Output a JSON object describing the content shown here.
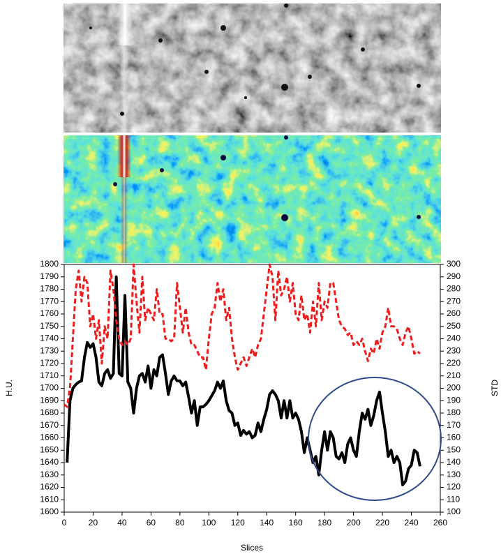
{
  "chart_data": {
    "type": "line",
    "x_label": "Slices",
    "y_label": "H.U.",
    "y2_label": "STD",
    "x": [
      0,
      2,
      4,
      6,
      8,
      10,
      12,
      14,
      16,
      18,
      20,
      22,
      24,
      26,
      28,
      30,
      32,
      34,
      36,
      38,
      40,
      42,
      44,
      46,
      48,
      50,
      52,
      54,
      56,
      58,
      60,
      62,
      64,
      66,
      68,
      70,
      72,
      74,
      76,
      78,
      80,
      82,
      84,
      86,
      88,
      90,
      92,
      94,
      96,
      98,
      100,
      102,
      104,
      106,
      108,
      110,
      112,
      114,
      116,
      118,
      120,
      122,
      124,
      126,
      128,
      130,
      132,
      134,
      136,
      138,
      140,
      142,
      144,
      146,
      148,
      150,
      152,
      154,
      156,
      158,
      160,
      162,
      164,
      166,
      168,
      170,
      172,
      174,
      176,
      178,
      180,
      182,
      184,
      186,
      188,
      190,
      192,
      194,
      196,
      198,
      200,
      202,
      204,
      206,
      208,
      210,
      212,
      214,
      216,
      218,
      220,
      222,
      224,
      226,
      228,
      230,
      232,
      234,
      236,
      238,
      240,
      242,
      244,
      246
    ],
    "series": [
      {
        "color": "#000000",
        "values": [
          null,
          1640,
          1690,
          1700,
          1703,
          1705,
          1706,
          1725,
          1737,
          1733,
          1736,
          1725,
          1705,
          1702,
          1712,
          1715,
          1708,
          1712,
          1790,
          1712,
          1710,
          1775,
          1705,
          1700,
          1680,
          1700,
          1710,
          1712,
          1705,
          1718,
          1700,
          1715,
          1710,
          1725,
          1727,
          1712,
          1695,
          1706,
          1710,
          1706,
          1706,
          1702,
          1705,
          1693,
          1680,
          1690,
          1670,
          1685,
          1685,
          1687,
          1690,
          1694,
          1698,
          1705,
          1700,
          1706,
          1690,
          1682,
          1680,
          1670,
          1672,
          1662,
          1666,
          1663,
          1665,
          1660,
          1662,
          1672,
          1665,
          1675,
          1683,
          1695,
          1698,
          1695,
          1690,
          1676,
          1690,
          1676,
          1690,
          1676,
          1680,
          1675,
          1665,
          1648,
          1660,
          1650,
          1640,
          1645,
          1630,
          1650,
          1665,
          1650,
          1665,
          1660,
          1645,
          1643,
          1648,
          1640,
          1655,
          1660,
          1650,
          1645,
          1665,
          1680,
          1675,
          1683,
          1670,
          1678,
          1690,
          1697,
          1680,
          1665,
          1645,
          1650,
          1640,
          1645,
          1640,
          1622,
          1625,
          1635,
          1638,
          1650,
          1648,
          1637
        ]
      },
      {
        "color": "#ee1c1c",
        "axis": "y2",
        "dashed": true,
        "values": [
          187,
          185,
          200,
          240,
          280,
          295,
          270,
          290,
          285,
          250,
          260,
          240,
          255,
          220,
          250,
          240,
          295,
          280,
          255,
          240,
          235,
          238,
          235,
          240,
          300,
          270,
          245,
          290,
          255,
          265,
          260,
          255,
          280,
          260,
          260,
          240,
          240,
          238,
          240,
          285,
          265,
          245,
          265,
          245,
          235,
          235,
          230,
          225,
          225,
          215,
          240,
          260,
          265,
          285,
          270,
          280,
          255,
          265,
          240,
          225,
          215,
          220,
          225,
          218,
          225,
          232,
          225,
          235,
          240,
          260,
          280,
          300,
          290,
          255,
          295,
          275,
          280,
          290,
          270,
          285,
          260,
          255,
          275,
          255,
          260,
          245,
          270,
          250,
          285,
          255,
          270,
          265,
          285,
          285,
          270,
          255,
          250,
          248,
          243,
          245,
          235,
          238,
          235,
          240,
          230,
          222,
          232,
          228,
          240,
          232,
          245,
          250,
          265,
          250,
          250,
          248,
          240,
          235,
          245,
          250,
          240,
          228,
          230,
          228
        ]
      }
    ],
    "xlim": [
      0,
      260
    ],
    "xticks": [
      0,
      20,
      40,
      60,
      80,
      100,
      120,
      140,
      160,
      180,
      200,
      220,
      240,
      260
    ],
    "ylim": [
      1600,
      1800
    ],
    "yticks": [
      1600,
      1610,
      1620,
      1630,
      1640,
      1650,
      1660,
      1670,
      1680,
      1690,
      1700,
      1710,
      1720,
      1730,
      1740,
      1750,
      1760,
      1770,
      1780,
      1790,
      1800
    ],
    "y2lim": [
      100,
      300
    ],
    "y2ticks": [
      100,
      110,
      120,
      130,
      140,
      150,
      160,
      170,
      180,
      190,
      200,
      210,
      220,
      230,
      240,
      250,
      260,
      270,
      280,
      290,
      300
    ]
  }
}
